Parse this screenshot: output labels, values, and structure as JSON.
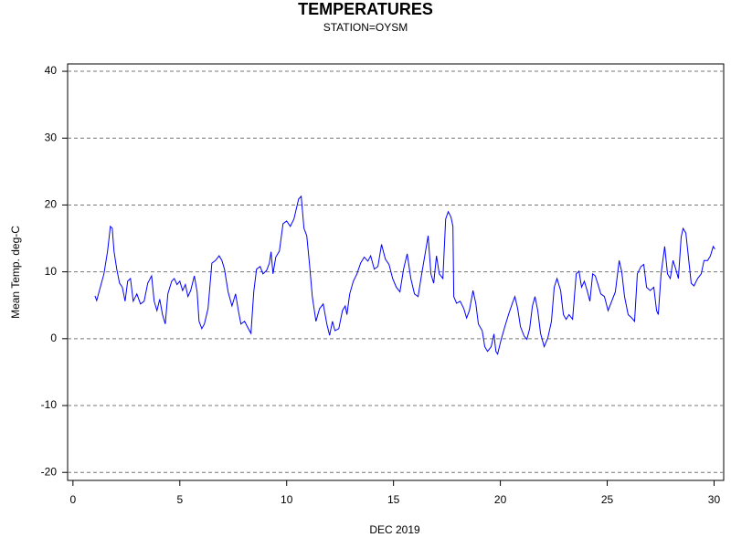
{
  "chart_data": {
    "type": "line",
    "title": "TEMPERATURES",
    "subtitle": "STATION=OYSM",
    "x_label": "DEC 2019",
    "y_label": "Mean Temp. deg-C",
    "xlim": [
      -0.25,
      30.45
    ],
    "ylim": [
      -21.2,
      41.1
    ],
    "xticks": [
      0,
      5,
      10,
      15,
      20,
      25,
      30
    ],
    "yticks": [
      -20,
      -10,
      0,
      10,
      20,
      30,
      40
    ],
    "grid": true,
    "series": [
      {
        "name": "Mean Temp",
        "color": "#0000ff",
        "x": [
          1.03,
          1.11,
          1.28,
          1.45,
          1.62,
          1.75,
          1.84,
          1.92,
          2.05,
          2.18,
          2.31,
          2.44,
          2.56,
          2.69,
          2.82,
          2.99,
          3.16,
          3.33,
          3.5,
          3.68,
          3.8,
          3.93,
          4.06,
          4.19,
          4.32,
          4.44,
          4.62,
          4.74,
          4.87,
          5.0,
          5.13,
          5.26,
          5.38,
          5.51,
          5.68,
          5.81,
          5.9,
          6.03,
          6.15,
          6.32,
          6.5,
          6.67,
          6.84,
          6.97,
          7.09,
          7.26,
          7.44,
          7.61,
          7.74,
          7.86,
          8.03,
          8.21,
          8.33,
          8.46,
          8.59,
          8.76,
          8.89,
          9.06,
          9.19,
          9.27,
          9.36,
          9.49,
          9.66,
          9.83,
          10.0,
          10.17,
          10.34,
          10.56,
          10.68,
          10.81,
          10.94,
          11.07,
          11.2,
          11.37,
          11.54,
          11.71,
          11.88,
          12.01,
          12.14,
          12.26,
          12.44,
          12.61,
          12.74,
          12.82,
          12.95,
          13.12,
          13.29,
          13.46,
          13.63,
          13.8,
          13.93,
          14.1,
          14.27,
          14.44,
          14.62,
          14.79,
          14.96,
          15.13,
          15.3,
          15.47,
          15.64,
          15.81,
          15.98,
          16.15,
          16.32,
          16.5,
          16.62,
          16.75,
          16.88,
          17.01,
          17.14,
          17.31,
          17.44,
          17.56,
          17.69,
          17.78,
          17.82,
          17.95,
          18.12,
          18.29,
          18.42,
          18.55,
          18.72,
          18.85,
          18.97,
          19.15,
          19.27,
          19.4,
          19.57,
          19.7,
          19.79,
          19.87,
          20.04,
          20.21,
          20.38,
          20.56,
          20.68,
          20.81,
          20.94,
          21.11,
          21.24,
          21.37,
          21.5,
          21.62,
          21.75,
          21.88,
          22.05,
          22.22,
          22.39,
          22.52,
          22.65,
          22.82,
          22.95,
          23.08,
          23.21,
          23.38,
          23.55,
          23.68,
          23.8,
          23.93,
          24.06,
          24.19,
          24.32,
          24.44,
          24.57,
          24.7,
          24.87,
          25.04,
          25.21,
          25.38,
          25.56,
          25.68,
          25.81,
          25.98,
          26.15,
          26.28,
          26.41,
          26.58,
          26.71,
          26.84,
          27.01,
          27.18,
          27.31,
          27.39,
          27.52,
          27.69,
          27.82,
          27.95,
          28.08,
          28.21,
          28.33,
          28.46,
          28.55,
          28.68,
          28.8,
          28.93,
          29.06,
          29.23,
          29.4,
          29.53,
          29.7,
          29.83,
          29.96,
          30.04
        ],
        "values": [
          6.4,
          5.7,
          7.7,
          9.7,
          13.1,
          16.8,
          16.5,
          13.1,
          10.4,
          8.3,
          7.7,
          5.6,
          8.6,
          9.0,
          5.6,
          6.7,
          5.2,
          5.6,
          8.3,
          9.4,
          5.6,
          4.2,
          5.9,
          3.6,
          2.2,
          6.7,
          8.6,
          9.0,
          8.1,
          8.6,
          7.2,
          8.1,
          6.3,
          7.2,
          9.4,
          7.0,
          2.6,
          1.5,
          2.2,
          4.5,
          11.3,
          11.7,
          12.4,
          11.7,
          10.4,
          7.0,
          4.9,
          6.7,
          4.2,
          2.2,
          2.6,
          1.5,
          0.8,
          7.0,
          10.4,
          10.8,
          9.7,
          10.2,
          11.3,
          13.0,
          9.7,
          12.2,
          13.1,
          17.2,
          17.6,
          16.8,
          17.9,
          20.9,
          21.3,
          16.5,
          15.4,
          11.1,
          6.3,
          2.6,
          4.5,
          5.2,
          2.2,
          0.5,
          2.6,
          1.2,
          1.5,
          4.2,
          4.9,
          3.6,
          6.7,
          8.6,
          9.7,
          11.3,
          12.2,
          11.6,
          12.4,
          10.4,
          10.8,
          14.1,
          11.9,
          11.1,
          9.0,
          7.7,
          7.0,
          10.4,
          12.7,
          9.0,
          6.7,
          6.3,
          9.7,
          13.1,
          15.4,
          9.7,
          8.3,
          12.4,
          9.7,
          9.0,
          17.9,
          19.0,
          18.2,
          16.8,
          6.3,
          5.3,
          5.6,
          4.5,
          3.1,
          4.2,
          7.2,
          5.3,
          2.2,
          1.2,
          -1.2,
          -1.9,
          -1.2,
          0.7,
          -1.9,
          -2.3,
          -0.1,
          1.8,
          3.6,
          5.3,
          6.3,
          4.5,
          1.8,
          0.4,
          -0.1,
          1.5,
          4.9,
          6.3,
          4.2,
          0.8,
          -1.2,
          0.1,
          2.6,
          7.7,
          9.0,
          7.2,
          3.6,
          2.9,
          3.6,
          2.9,
          9.7,
          10.1,
          7.7,
          8.6,
          7.2,
          5.6,
          9.7,
          9.4,
          8.1,
          6.7,
          6.3,
          4.2,
          5.6,
          7.0,
          11.7,
          10.0,
          6.3,
          3.6,
          3.1,
          2.6,
          9.7,
          10.8,
          11.1,
          7.7,
          7.2,
          7.7,
          4.2,
          3.6,
          9.7,
          13.8,
          9.7,
          9.0,
          11.7,
          10.4,
          9.0,
          15.2,
          16.5,
          15.8,
          12.2,
          8.3,
          7.9,
          9.0,
          9.7,
          11.7,
          11.7,
          12.4,
          13.8,
          13.4
        ]
      }
    ]
  }
}
